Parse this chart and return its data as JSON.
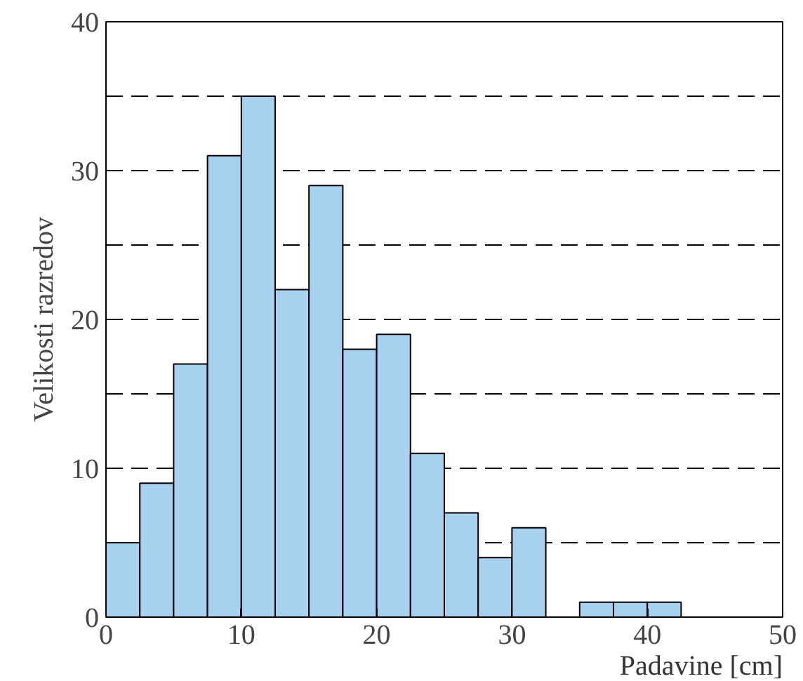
{
  "chart_data": {
    "type": "histogram",
    "xlabel": "Padavine [cm]",
    "ylabel": "Velikosti razredov",
    "bins": [
      0,
      2.5,
      5,
      7.5,
      10,
      12.5,
      15,
      17.5,
      20,
      22.5,
      25,
      27.5,
      30,
      32.5,
      35,
      37.5,
      40,
      42.5
    ],
    "values": [
      5,
      9,
      17,
      31,
      35,
      22,
      29,
      18,
      19,
      11,
      7,
      4,
      6,
      null,
      1,
      1,
      1
    ],
    "color": "#a8d1ef",
    "xlim": [
      0,
      50
    ],
    "xticks": [
      0,
      10,
      20,
      30,
      40,
      50
    ],
    "ylim": [
      0,
      40
    ],
    "yticks": [
      0,
      {
        "value": 5,
        "label": null
      },
      10,
      {
        "value": 15,
        "label": null
      },
      20,
      {
        "value": 25,
        "label": null
      },
      30,
      {
        "value": 35,
        "label": null
      },
      40
    ],
    "grid": "y"
  }
}
